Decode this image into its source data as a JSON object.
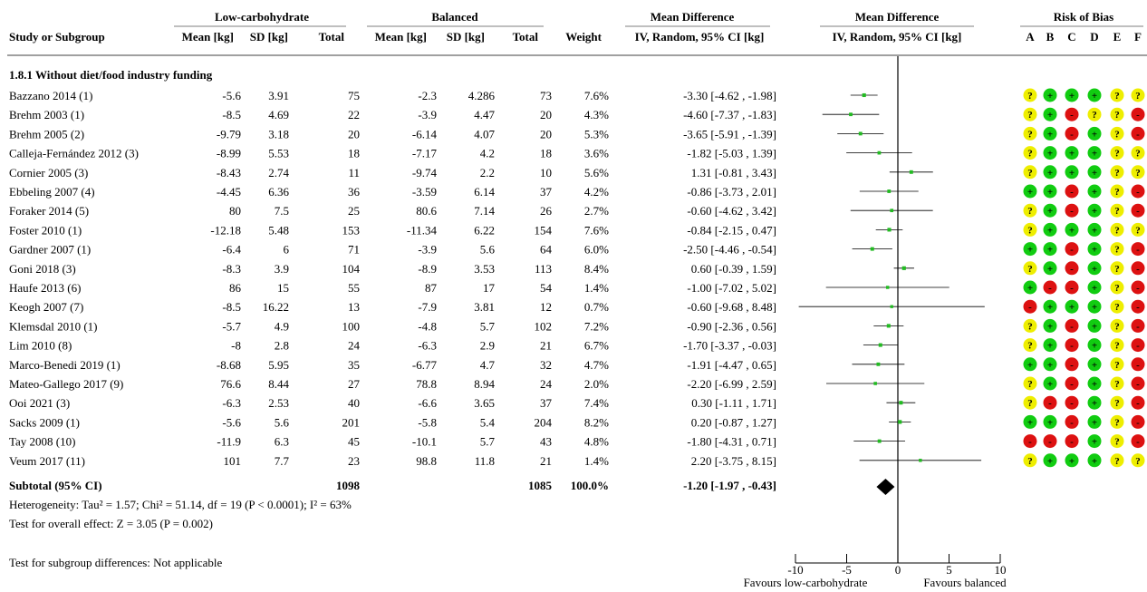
{
  "header": {
    "group_low": "Low-carbohydrate",
    "group_bal": "Balanced",
    "md_title": "Mean Difference",
    "md_plot_title": "Mean Difference",
    "rob_title": "Risk of Bias",
    "col_study": "Study or Subgroup",
    "col_mean_low": "Mean [kg]",
    "col_sd_low": "SD [kg]",
    "col_total_low": "Total",
    "col_mean_bal": "Mean [kg]",
    "col_sd_bal": "SD [kg]",
    "col_total_bal": "Total",
    "col_weight": "Weight",
    "col_ci": "IV, Random, 95% CI [kg]",
    "col_ci_plot": "IV, Random, 95% CI [kg]",
    "rob_letters": [
      "A",
      "B",
      "C",
      "D",
      "E",
      "F"
    ]
  },
  "subgroup_title": "1.8.1 Without diet/food industry funding",
  "studies": [
    {
      "name": "Bazzano 2014 (1)",
      "mean_low": "-5.6",
      "sd_low": "3.91",
      "n_low": "75",
      "mean_bal": "-2.3",
      "sd_bal": "4.286",
      "n_bal": "73",
      "weight": "7.6%",
      "ci_text": "-3.30 [-4.62 , -1.98]",
      "rob": [
        "?",
        "+",
        "+",
        "+",
        "?",
        "?"
      ]
    },
    {
      "name": "Brehm 2003 (1)",
      "mean_low": "-8.5",
      "sd_low": "4.69",
      "n_low": "22",
      "mean_bal": "-3.9",
      "sd_bal": "4.47",
      "n_bal": "20",
      "weight": "4.3%",
      "ci_text": "-4.60 [-7.37 , -1.83]",
      "rob": [
        "?",
        "+",
        "-",
        "?",
        "?",
        "-"
      ]
    },
    {
      "name": "Brehm 2005 (2)",
      "mean_low": "-9.79",
      "sd_low": "3.18",
      "n_low": "20",
      "mean_bal": "-6.14",
      "sd_bal": "4.07",
      "n_bal": "20",
      "weight": "5.3%",
      "ci_text": "-3.65 [-5.91 , -1.39]",
      "rob": [
        "?",
        "+",
        "-",
        "+",
        "?",
        "-"
      ]
    },
    {
      "name": "Calleja-Fernández 2012 (3)",
      "mean_low": "-8.99",
      "sd_low": "5.53",
      "n_low": "18",
      "mean_bal": "-7.17",
      "sd_bal": "4.2",
      "n_bal": "18",
      "weight": "3.6%",
      "ci_text": "-1.82 [-5.03 , 1.39]",
      "rob": [
        "?",
        "+",
        "+",
        "+",
        "?",
        "?"
      ]
    },
    {
      "name": "Cornier 2005 (3)",
      "mean_low": "-8.43",
      "sd_low": "2.74",
      "n_low": "11",
      "mean_bal": "-9.74",
      "sd_bal": "2.2",
      "n_bal": "10",
      "weight": "5.6%",
      "ci_text": "1.31 [-0.81 , 3.43]",
      "rob": [
        "?",
        "+",
        "+",
        "+",
        "?",
        "?"
      ]
    },
    {
      "name": "Ebbeling 2007 (4)",
      "mean_low": "-4.45",
      "sd_low": "6.36",
      "n_low": "36",
      "mean_bal": "-3.59",
      "sd_bal": "6.14",
      "n_bal": "37",
      "weight": "4.2%",
      "ci_text": "-0.86 [-3.73 , 2.01]",
      "rob": [
        "+",
        "+",
        "-",
        "+",
        "?",
        "-"
      ]
    },
    {
      "name": "Foraker 2014 (5)",
      "mean_low": "80",
      "sd_low": "7.5",
      "n_low": "25",
      "mean_bal": "80.6",
      "sd_bal": "7.14",
      "n_bal": "26",
      "weight": "2.7%",
      "ci_text": "-0.60 [-4.62 , 3.42]",
      "rob": [
        "?",
        "+",
        "-",
        "+",
        "?",
        "-"
      ]
    },
    {
      "name": "Foster 2010 (1)",
      "mean_low": "-12.18",
      "sd_low": "5.48",
      "n_low": "153",
      "mean_bal": "-11.34",
      "sd_bal": "6.22",
      "n_bal": "154",
      "weight": "7.6%",
      "ci_text": "-0.84 [-2.15 , 0.47]",
      "rob": [
        "?",
        "+",
        "+",
        "+",
        "?",
        "?"
      ]
    },
    {
      "name": "Gardner 2007 (1)",
      "mean_low": "-6.4",
      "sd_low": "6",
      "n_low": "71",
      "mean_bal": "-3.9",
      "sd_bal": "5.6",
      "n_bal": "64",
      "weight": "6.0%",
      "ci_text": "-2.50 [-4.46 , -0.54]",
      "rob": [
        "+",
        "+",
        "-",
        "+",
        "?",
        "-"
      ]
    },
    {
      "name": "Goni 2018 (3)",
      "mean_low": "-8.3",
      "sd_low": "3.9",
      "n_low": "104",
      "mean_bal": "-8.9",
      "sd_bal": "3.53",
      "n_bal": "113",
      "weight": "8.4%",
      "ci_text": "0.60 [-0.39 , 1.59]",
      "rob": [
        "?",
        "+",
        "-",
        "+",
        "?",
        "-"
      ]
    },
    {
      "name": "Haufe 2013 (6)",
      "mean_low": "86",
      "sd_low": "15",
      "n_low": "55",
      "mean_bal": "87",
      "sd_bal": "17",
      "n_bal": "54",
      "weight": "1.4%",
      "ci_text": "-1.00 [-7.02 , 5.02]",
      "rob": [
        "+",
        "-",
        "-",
        "+",
        "?",
        "-"
      ]
    },
    {
      "name": "Keogh 2007 (7)",
      "mean_low": "-8.5",
      "sd_low": "16.22",
      "n_low": "13",
      "mean_bal": "-7.9",
      "sd_bal": "3.81",
      "n_bal": "12",
      "weight": "0.7%",
      "ci_text": "-0.60 [-9.68 , 8.48]",
      "rob": [
        "-",
        "+",
        "+",
        "+",
        "?",
        "-"
      ]
    },
    {
      "name": "Klemsdal 2010 (1)",
      "mean_low": "-5.7",
      "sd_low": "4.9",
      "n_low": "100",
      "mean_bal": "-4.8",
      "sd_bal": "5.7",
      "n_bal": "102",
      "weight": "7.2%",
      "ci_text": "-0.90 [-2.36 , 0.56]",
      "rob": [
        "?",
        "+",
        "-",
        "+",
        "?",
        "-"
      ]
    },
    {
      "name": "Lim 2010 (8)",
      "mean_low": "-8",
      "sd_low": "2.8",
      "n_low": "24",
      "mean_bal": "-6.3",
      "sd_bal": "2.9",
      "n_bal": "21",
      "weight": "6.7%",
      "ci_text": "-1.70 [-3.37 , -0.03]",
      "rob": [
        "?",
        "+",
        "-",
        "+",
        "?",
        "-"
      ]
    },
    {
      "name": "Marco-Benedi 2019 (1)",
      "mean_low": "-8.68",
      "sd_low": "5.95",
      "n_low": "35",
      "mean_bal": "-6.77",
      "sd_bal": "4.7",
      "n_bal": "32",
      "weight": "4.7%",
      "ci_text": "-1.91 [-4.47 , 0.65]",
      "rob": [
        "+",
        "+",
        "-",
        "+",
        "?",
        "-"
      ]
    },
    {
      "name": "Mateo-Gallego 2017 (9)",
      "mean_low": "76.6",
      "sd_low": "8.44",
      "n_low": "27",
      "mean_bal": "78.8",
      "sd_bal": "8.94",
      "n_bal": "24",
      "weight": "2.0%",
      "ci_text": "-2.20 [-6.99 , 2.59]",
      "rob": [
        "?",
        "+",
        "-",
        "+",
        "?",
        "-"
      ]
    },
    {
      "name": "Ooi 2021 (3)",
      "mean_low": "-6.3",
      "sd_low": "2.53",
      "n_low": "40",
      "mean_bal": "-6.6",
      "sd_bal": "3.65",
      "n_bal": "37",
      "weight": "7.4%",
      "ci_text": "0.30 [-1.11 , 1.71]",
      "rob": [
        "?",
        "-",
        "-",
        "+",
        "?",
        "-"
      ]
    },
    {
      "name": "Sacks 2009 (1)",
      "mean_low": "-5.6",
      "sd_low": "5.6",
      "n_low": "201",
      "mean_bal": "-5.8",
      "sd_bal": "5.4",
      "n_bal": "204",
      "weight": "8.2%",
      "ci_text": "0.20 [-0.87 , 1.27]",
      "rob": [
        "+",
        "+",
        "-",
        "+",
        "?",
        "-"
      ]
    },
    {
      "name": "Tay 2008 (10)",
      "mean_low": "-11.9",
      "sd_low": "6.3",
      "n_low": "45",
      "mean_bal": "-10.1",
      "sd_bal": "5.7",
      "n_bal": "43",
      "weight": "4.8%",
      "ci_text": "-1.80 [-4.31 , 0.71]",
      "rob": [
        "-",
        "-",
        "-",
        "+",
        "?",
        "-"
      ]
    },
    {
      "name": "Veum 2017 (11)",
      "mean_low": "101",
      "sd_low": "7.7",
      "n_low": "23",
      "mean_bal": "98.8",
      "sd_bal": "11.8",
      "n_bal": "21",
      "weight": "1.4%",
      "ci_text": "2.20 [-3.75 , 8.15]",
      "rob": [
        "?",
        "+",
        "+",
        "+",
        "?",
        "?"
      ]
    }
  ],
  "subtotal": {
    "label": "Subtotal (95% CI)",
    "n_low": "1098",
    "n_bal": "1085",
    "weight": "100.0%",
    "ci_text": "-1.20 [-1.97 , -0.43]"
  },
  "heterogeneity": "Heterogeneity: Tau² = 1.57; Chi² = 51.14, df = 19 (P < 0.0001); I² = 63%",
  "overall_effect": "Test for overall effect: Z = 3.05 (P = 0.002)",
  "subgroup_diff": "Test for subgroup differences: Not applicable",
  "axis": {
    "ticks": [
      -10,
      -5,
      0,
      5,
      10
    ],
    "tick_labels": [
      "-10",
      "-5",
      "0",
      "5",
      "10"
    ],
    "label_left": "Favours low-carbohydrate",
    "label_right": "Favours balanced"
  },
  "colors": {
    "point": "#22bb22",
    "rob_low": "#11cc11",
    "rob_unclear": "#eeee00",
    "rob_high": "#dd1111"
  },
  "chart_data": {
    "type": "forest",
    "x_range": [
      -10,
      10
    ],
    "reference_line": 0,
    "studies": [
      {
        "name": "Bazzano 2014 (1)",
        "md": -3.3,
        "lo": -4.62,
        "hi": -1.98,
        "weight": 7.6
      },
      {
        "name": "Brehm 2003 (1)",
        "md": -4.6,
        "lo": -7.37,
        "hi": -1.83,
        "weight": 4.3
      },
      {
        "name": "Brehm 2005 (2)",
        "md": -3.65,
        "lo": -5.91,
        "hi": -1.39,
        "weight": 5.3
      },
      {
        "name": "Calleja-Fernández 2012 (3)",
        "md": -1.82,
        "lo": -5.03,
        "hi": 1.39,
        "weight": 3.6
      },
      {
        "name": "Cornier 2005 (3)",
        "md": 1.31,
        "lo": -0.81,
        "hi": 3.43,
        "weight": 5.6
      },
      {
        "name": "Ebbeling 2007 (4)",
        "md": -0.86,
        "lo": -3.73,
        "hi": 2.01,
        "weight": 4.2
      },
      {
        "name": "Foraker 2014 (5)",
        "md": -0.6,
        "lo": -4.62,
        "hi": 3.42,
        "weight": 2.7
      },
      {
        "name": "Foster 2010 (1)",
        "md": -0.84,
        "lo": -2.15,
        "hi": 0.47,
        "weight": 7.6
      },
      {
        "name": "Gardner 2007 (1)",
        "md": -2.5,
        "lo": -4.46,
        "hi": -0.54,
        "weight": 6.0
      },
      {
        "name": "Goni 2018 (3)",
        "md": 0.6,
        "lo": -0.39,
        "hi": 1.59,
        "weight": 8.4
      },
      {
        "name": "Haufe 2013 (6)",
        "md": -1.0,
        "lo": -7.02,
        "hi": 5.02,
        "weight": 1.4
      },
      {
        "name": "Keogh 2007 (7)",
        "md": -0.6,
        "lo": -9.68,
        "hi": 8.48,
        "weight": 0.7
      },
      {
        "name": "Klemsdal 2010 (1)",
        "md": -0.9,
        "lo": -2.36,
        "hi": 0.56,
        "weight": 7.2
      },
      {
        "name": "Lim 2010 (8)",
        "md": -1.7,
        "lo": -3.37,
        "hi": -0.03,
        "weight": 6.7
      },
      {
        "name": "Marco-Benedi 2019 (1)",
        "md": -1.91,
        "lo": -4.47,
        "hi": 0.65,
        "weight": 4.7
      },
      {
        "name": "Mateo-Gallego 2017 (9)",
        "md": -2.2,
        "lo": -6.99,
        "hi": 2.59,
        "weight": 2.0
      },
      {
        "name": "Ooi 2021 (3)",
        "md": 0.3,
        "lo": -1.11,
        "hi": 1.71,
        "weight": 7.4
      },
      {
        "name": "Sacks 2009 (1)",
        "md": 0.2,
        "lo": -0.87,
        "hi": 1.27,
        "weight": 8.2
      },
      {
        "name": "Tay 2008 (10)",
        "md": -1.8,
        "lo": -4.31,
        "hi": 0.71,
        "weight": 4.8
      },
      {
        "name": "Veum 2017 (11)",
        "md": 2.2,
        "lo": -3.75,
        "hi": 8.15,
        "weight": 1.4
      }
    ],
    "pooled": {
      "md": -1.2,
      "lo": -1.97,
      "hi": -0.43
    },
    "xlabel_left": "Favours low-carbohydrate",
    "xlabel_right": "Favours balanced"
  }
}
